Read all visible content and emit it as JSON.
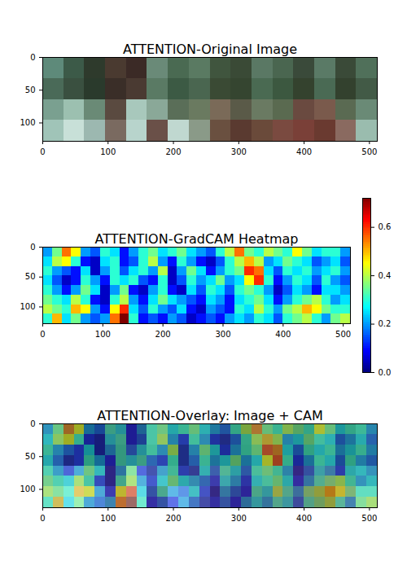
{
  "chart_data": [
    {
      "type": "image",
      "title": "ATTENTION-Original Image",
      "xlim": [
        0,
        512
      ],
      "ylim": [
        128,
        0
      ],
      "xticks": [
        0,
        100,
        200,
        300,
        400,
        500
      ],
      "yticks": [
        0,
        50,
        100
      ],
      "pixels": [
        [
          "#5e8a7a",
          "#3c5a48",
          "#2e3a2c",
          "#4a3a30",
          "#3b2a26",
          "#6a8a78",
          "#4a6a52",
          "#5a7a62",
          "#40553e",
          "#3a4a36",
          "#5a7864",
          "#4a6650",
          "#3a4a3a",
          "#5a7a66",
          "#3a4a38",
          "#50705a"
        ],
        [
          "#4a6a58",
          "#3a5040",
          "#2a3a2c",
          "#3a2e28",
          "#4a3a32",
          "#5a7a64",
          "#3c5a44",
          "#4a6650",
          "#3a4a34",
          "#354530",
          "#4a6a52",
          "#3c5840",
          "#34422e",
          "#4a6a54",
          "#33412e",
          "#425a46"
        ],
        [
          "#7aa090",
          "#9cc0b0",
          "#6a8a76",
          "#5a4a40",
          "#a8c8bc",
          "#8aa898",
          "#5a6e58",
          "#6a7a60",
          "#7a6a58",
          "#5a5a48",
          "#6a7a62",
          "#5a6a50",
          "#6a4a40",
          "#7a5a4c",
          "#5a6a52",
          "#6a8a76"
        ],
        [
          "#a0c4b8",
          "#c8e0d8",
          "#9cb8b0",
          "#7a6a60",
          "#b8d4cc",
          "#6a5048",
          "#c0d8d0",
          "#8a9a88",
          "#6a5040",
          "#5a3a30",
          "#6a4a3a",
          "#7a4a40",
          "#7a4038",
          "#6a3a30",
          "#8a6a60",
          "#9abcae"
        ]
      ]
    },
    {
      "type": "heatmap",
      "title": "ATTENTION-GradCAM Heatmap",
      "xlim": [
        0,
        512
      ],
      "ylim": [
        128,
        0
      ],
      "xticks": [
        0,
        100,
        200,
        300,
        400,
        500
      ],
      "yticks": [
        0,
        50,
        100
      ],
      "cells": [
        [
          0.2,
          0.35,
          0.55,
          0.45,
          0.2,
          0.15,
          0.3,
          0.25,
          0.1,
          0.2,
          0.3,
          0.35,
          0.25,
          0.3,
          0.35,
          0.25,
          0.2,
          0.15,
          0.3,
          0.4,
          0.55,
          0.35,
          0.3,
          0.4,
          0.35,
          0.3,
          0.45,
          0.35,
          0.25,
          0.3,
          0.3,
          0.2
        ],
        [
          0.25,
          0.4,
          0.45,
          0.3,
          0.1,
          0.05,
          0.25,
          0.3,
          0.1,
          0.15,
          0.3,
          0.4,
          0.2,
          0.1,
          0.3,
          0.2,
          0.1,
          0.05,
          0.15,
          0.3,
          0.4,
          0.5,
          0.4,
          0.2,
          0.25,
          0.35,
          0.3,
          0.25,
          0.15,
          0.2,
          0.25,
          0.15
        ],
        [
          0.3,
          0.2,
          0.15,
          0.1,
          0.25,
          0.05,
          0.2,
          0.3,
          0.15,
          0.25,
          0.3,
          0.2,
          0.4,
          0.05,
          0.2,
          0.35,
          0.25,
          0.1,
          0.2,
          0.3,
          0.35,
          0.6,
          0.55,
          0.25,
          0.15,
          0.3,
          0.25,
          0.3,
          0.2,
          0.25,
          0.3,
          0.2
        ],
        [
          0.25,
          0.15,
          0.05,
          0.1,
          0.3,
          0.2,
          0.1,
          0.3,
          0.25,
          0.3,
          0.15,
          0.1,
          0.3,
          0.05,
          0.15,
          0.3,
          0.2,
          0.25,
          0.35,
          0.2,
          0.25,
          0.45,
          0.6,
          0.3,
          0.1,
          0.2,
          0.3,
          0.25,
          0.15,
          0.3,
          0.2,
          0.15
        ],
        [
          0.3,
          0.2,
          0.1,
          0.2,
          0.35,
          0.25,
          0.05,
          0.2,
          0.35,
          0.1,
          0.05,
          0.2,
          0.3,
          0.1,
          0.05,
          0.25,
          0.15,
          0.3,
          0.25,
          0.15,
          0.3,
          0.35,
          0.3,
          0.2,
          0.05,
          0.15,
          0.25,
          0.2,
          0.1,
          0.25,
          0.25,
          0.2
        ],
        [
          0.35,
          0.3,
          0.25,
          0.4,
          0.3,
          0.1,
          0.05,
          0.3,
          0.4,
          0.2,
          0.1,
          0.25,
          0.35,
          0.25,
          0.2,
          0.15,
          0.1,
          0.25,
          0.2,
          0.1,
          0.25,
          0.3,
          0.35,
          0.25,
          0.1,
          0.2,
          0.3,
          0.35,
          0.4,
          0.3,
          0.2,
          0.25
        ],
        [
          0.4,
          0.35,
          0.3,
          0.5,
          0.45,
          0.2,
          0.1,
          0.45,
          0.6,
          0.25,
          0.15,
          0.3,
          0.2,
          0.15,
          0.25,
          0.1,
          0.05,
          0.2,
          0.15,
          0.1,
          0.3,
          0.25,
          0.4,
          0.3,
          0.2,
          0.35,
          0.4,
          0.5,
          0.45,
          0.35,
          0.3,
          0.3
        ],
        [
          0.3,
          0.5,
          0.25,
          0.35,
          0.2,
          0.15,
          0.2,
          0.55,
          0.72,
          0.3,
          0.1,
          0.15,
          0.1,
          0.2,
          0.15,
          0.05,
          0.1,
          0.15,
          0.1,
          0.2,
          0.25,
          0.2,
          0.3,
          0.25,
          0.15,
          0.3,
          0.35,
          0.4,
          0.3,
          0.2,
          0.35,
          0.4
        ]
      ],
      "colorbar": {
        "range": [
          0,
          0.72
        ],
        "ticks": [
          {
            "value": 0,
            "label": "0.0"
          },
          0.2,
          0.4,
          0.6
        ]
      }
    },
    {
      "type": "overlay",
      "title": "ATTENTION-Overlay: Image + CAM",
      "xlim": [
        0,
        512
      ],
      "ylim": [
        128,
        0
      ],
      "xticks": [
        0,
        100,
        200,
        300,
        400,
        500
      ],
      "yticks": [
        0,
        50,
        100
      ]
    }
  ]
}
